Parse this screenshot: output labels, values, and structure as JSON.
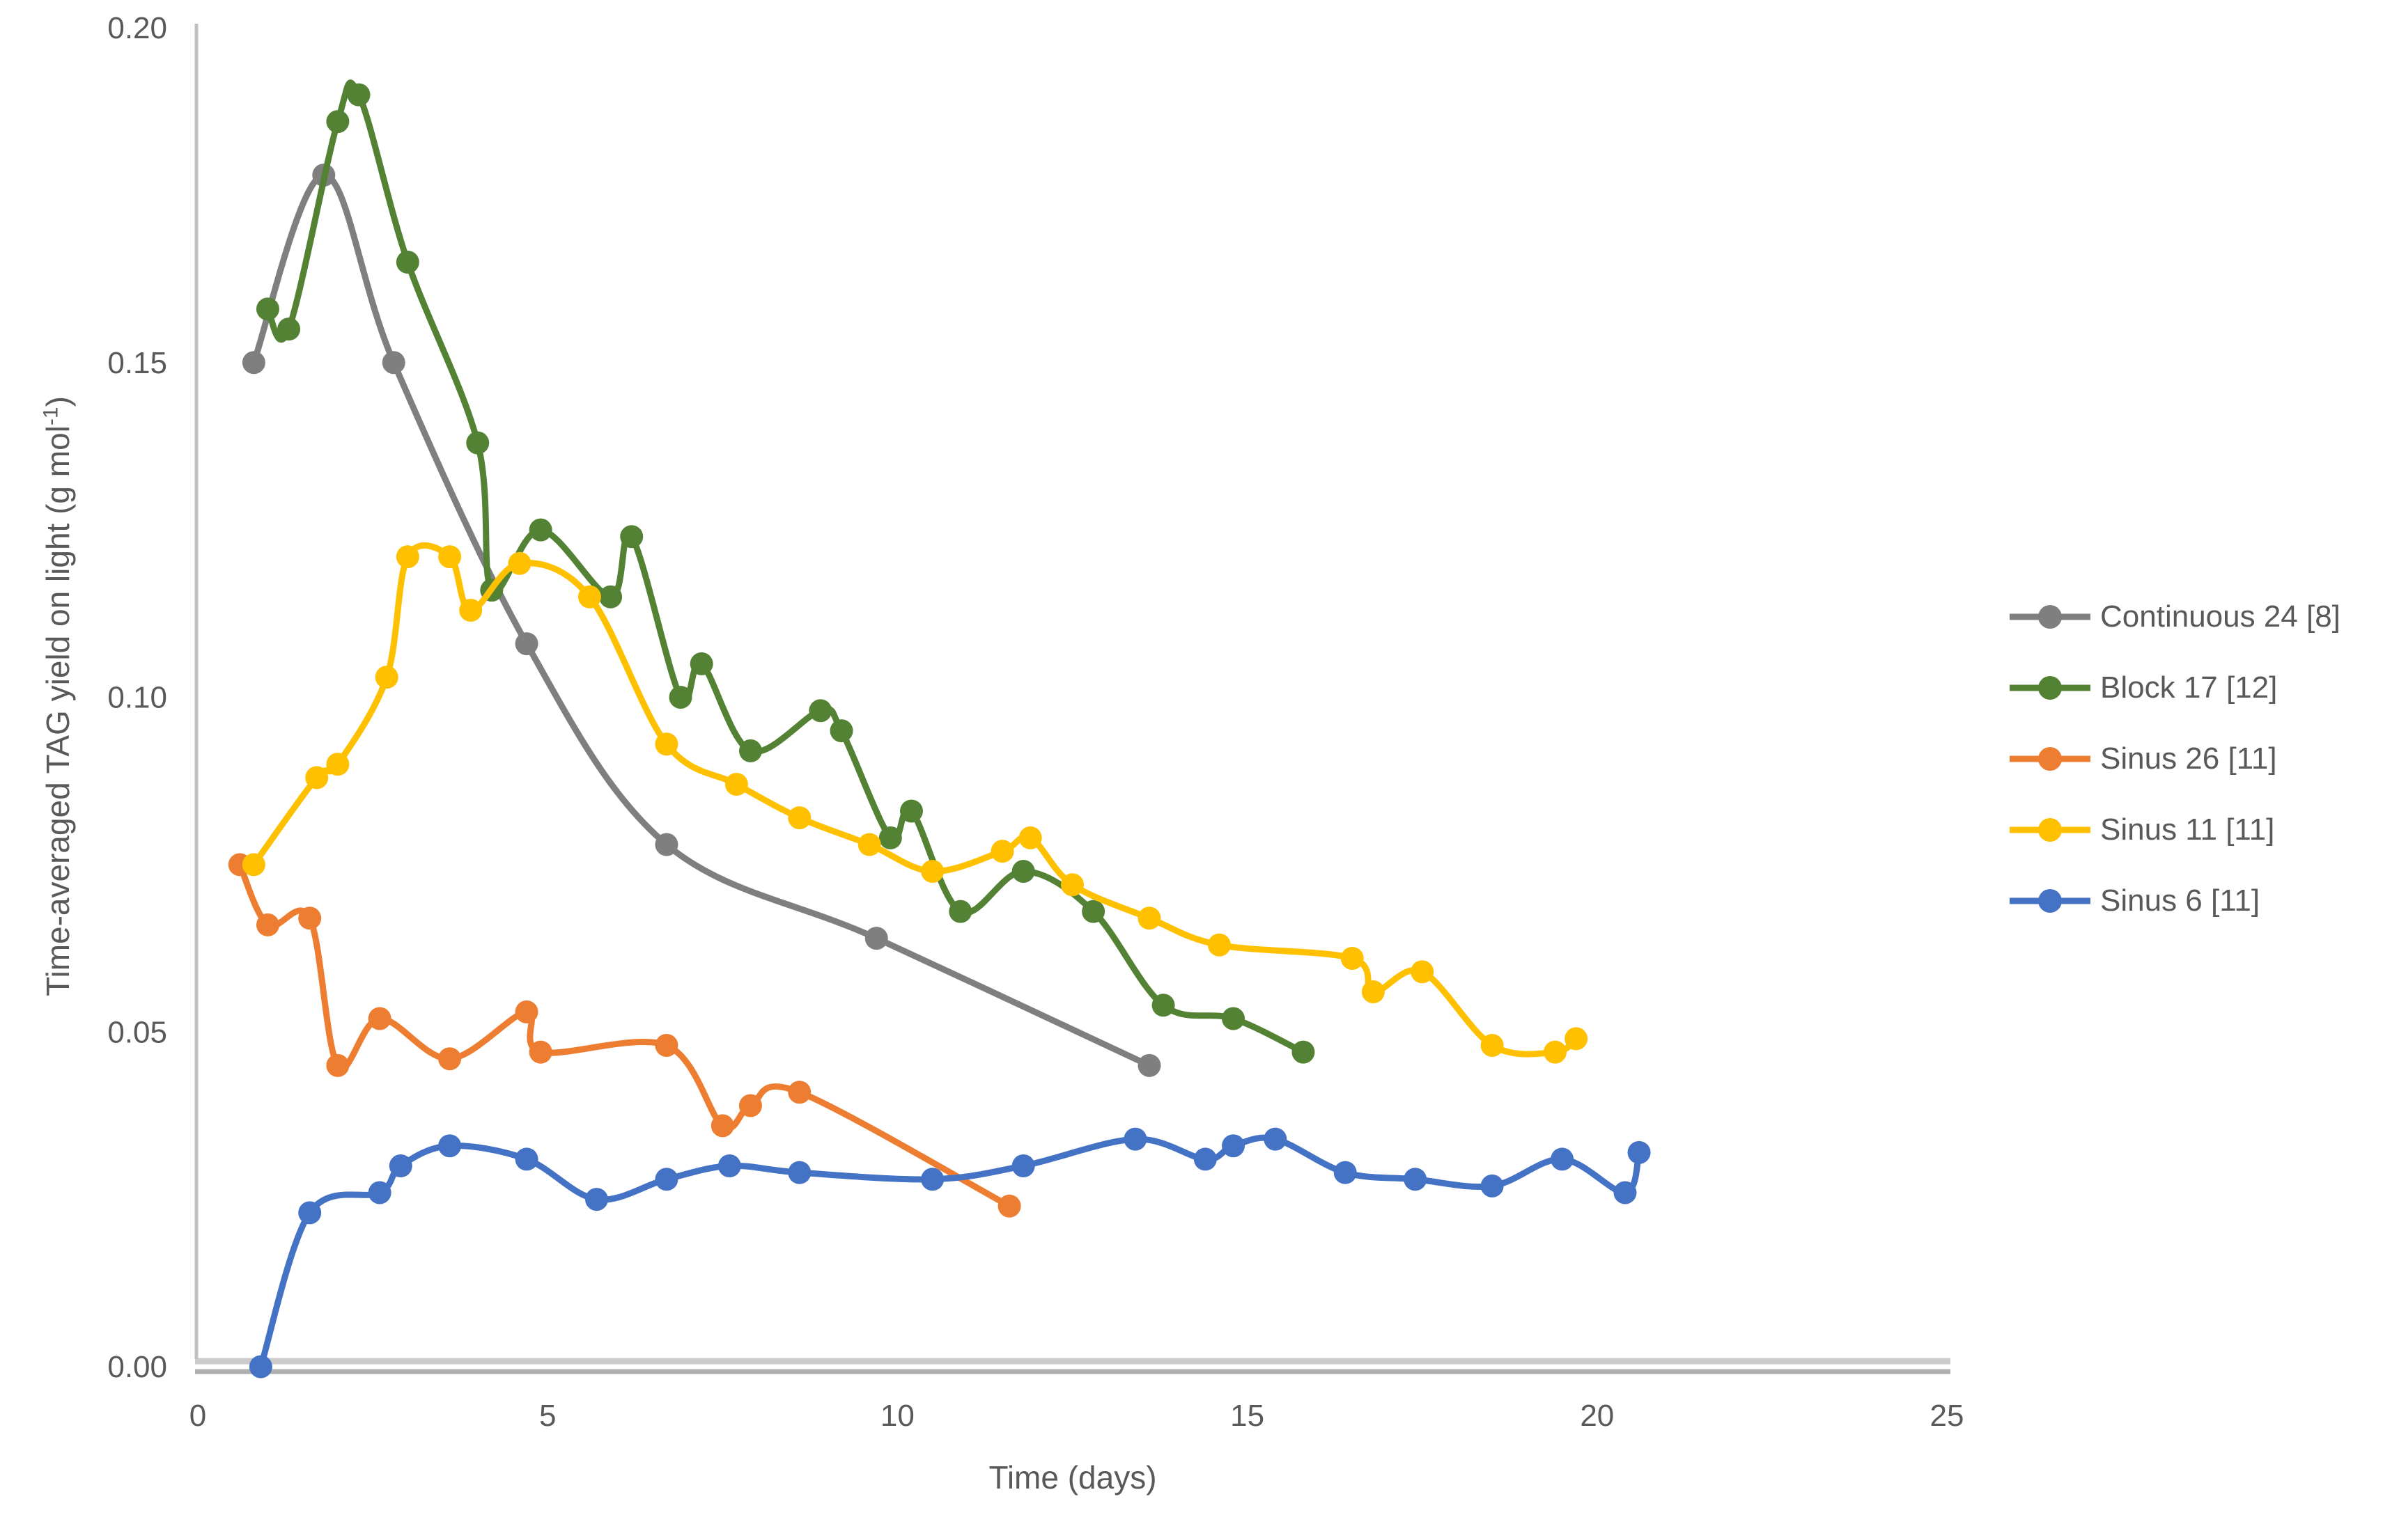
{
  "chart_data": {
    "type": "line",
    "title": "",
    "xlabel": "Time (days)",
    "ylabel_main": "Time-averaged TAG yield on light (g mol",
    "ylabel_sup": "-1",
    "ylabel_close": ")",
    "xlim": [
      0,
      25
    ],
    "ylim": [
      0,
      0.2
    ],
    "x_ticks": [
      0,
      5,
      10,
      15,
      20,
      25
    ],
    "x_tick_labels": [
      "0",
      "5",
      "10",
      "15",
      "20",
      "25"
    ],
    "y_ticks": [
      0.0,
      0.05,
      0.1,
      0.15,
      0.2
    ],
    "y_tick_labels": [
      "0.00",
      "0.05",
      "0.10",
      "0.15",
      "0.20"
    ],
    "grid": false,
    "line_style": "smooth",
    "legend_position": "right",
    "background_color": "#FFFFFF",
    "axis_line_color": "#BFBFBF",
    "text_color": "#595959",
    "series": [
      {
        "name": "Continuous 24 [8]",
        "color": "#7F7F7F",
        "points": [
          [
            0.8,
            0.15
          ],
          [
            1.8,
            0.178
          ],
          [
            2.8,
            0.15
          ],
          [
            4.7,
            0.108
          ],
          [
            6.7,
            0.078
          ],
          [
            9.7,
            0.064
          ],
          [
            13.6,
            0.045
          ]
        ]
      },
      {
        "name": "Block 17 [12]",
        "color": "#548235",
        "points": [
          [
            1.0,
            0.158
          ],
          [
            1.3,
            0.155
          ],
          [
            2.0,
            0.186
          ],
          [
            2.3,
            0.19
          ],
          [
            3.0,
            0.165
          ],
          [
            4.0,
            0.138
          ],
          [
            4.2,
            0.116
          ],
          [
            4.9,
            0.125
          ],
          [
            5.9,
            0.115
          ],
          [
            6.2,
            0.124
          ],
          [
            6.9,
            0.1
          ],
          [
            7.2,
            0.105
          ],
          [
            7.9,
            0.092
          ],
          [
            8.9,
            0.098
          ],
          [
            9.2,
            0.095
          ],
          [
            9.9,
            0.079
          ],
          [
            10.2,
            0.083
          ],
          [
            10.9,
            0.068
          ],
          [
            11.8,
            0.074
          ],
          [
            12.8,
            0.068
          ],
          [
            13.8,
            0.054
          ],
          [
            14.8,
            0.052
          ],
          [
            15.8,
            0.047
          ]
        ]
      },
      {
        "name": "Sinus 26 [11]",
        "color": "#ED7D31",
        "points": [
          [
            0.6,
            0.075
          ],
          [
            1.0,
            0.066
          ],
          [
            1.6,
            0.067
          ],
          [
            2.0,
            0.045
          ],
          [
            2.6,
            0.052
          ],
          [
            3.6,
            0.046
          ],
          [
            4.7,
            0.053
          ],
          [
            4.9,
            0.047
          ],
          [
            6.7,
            0.048
          ],
          [
            7.5,
            0.036
          ],
          [
            7.9,
            0.039
          ],
          [
            8.6,
            0.041
          ],
          [
            11.6,
            0.024
          ]
        ]
      },
      {
        "name": "Sinus 11 [11]",
        "color": "#FFC000",
        "points": [
          [
            0.8,
            0.075
          ],
          [
            1.7,
            0.088
          ],
          [
            2.0,
            0.09
          ],
          [
            2.7,
            0.103
          ],
          [
            3.0,
            0.121
          ],
          [
            3.6,
            0.121
          ],
          [
            3.9,
            0.113
          ],
          [
            4.6,
            0.12
          ],
          [
            5.6,
            0.115
          ],
          [
            6.7,
            0.093
          ],
          [
            7.7,
            0.087
          ],
          [
            8.6,
            0.082
          ],
          [
            9.6,
            0.078
          ],
          [
            10.5,
            0.074
          ],
          [
            11.5,
            0.077
          ],
          [
            11.9,
            0.079
          ],
          [
            12.5,
            0.072
          ],
          [
            13.6,
            0.067
          ],
          [
            14.6,
            0.063
          ],
          [
            16.5,
            0.061
          ],
          [
            16.8,
            0.056
          ],
          [
            17.5,
            0.059
          ],
          [
            18.5,
            0.048
          ],
          [
            19.4,
            0.047
          ],
          [
            19.7,
            0.049
          ]
        ]
      },
      {
        "name": "Sinus 6 [11]",
        "color": "#4472C4",
        "points": [
          [
            0.9,
            0.0
          ],
          [
            1.6,
            0.023
          ],
          [
            2.6,
            0.026
          ],
          [
            2.9,
            0.03
          ],
          [
            3.6,
            0.033
          ],
          [
            4.7,
            0.031
          ],
          [
            5.7,
            0.025
          ],
          [
            6.7,
            0.028
          ],
          [
            7.6,
            0.03
          ],
          [
            8.6,
            0.029
          ],
          [
            10.5,
            0.028
          ],
          [
            11.8,
            0.03
          ],
          [
            13.4,
            0.034
          ],
          [
            14.4,
            0.031
          ],
          [
            14.8,
            0.033
          ],
          [
            15.4,
            0.034
          ],
          [
            16.4,
            0.029
          ],
          [
            17.4,
            0.028
          ],
          [
            18.5,
            0.027
          ],
          [
            19.5,
            0.031
          ],
          [
            20.4,
            0.026
          ],
          [
            20.6,
            0.032
          ]
        ]
      }
    ]
  }
}
